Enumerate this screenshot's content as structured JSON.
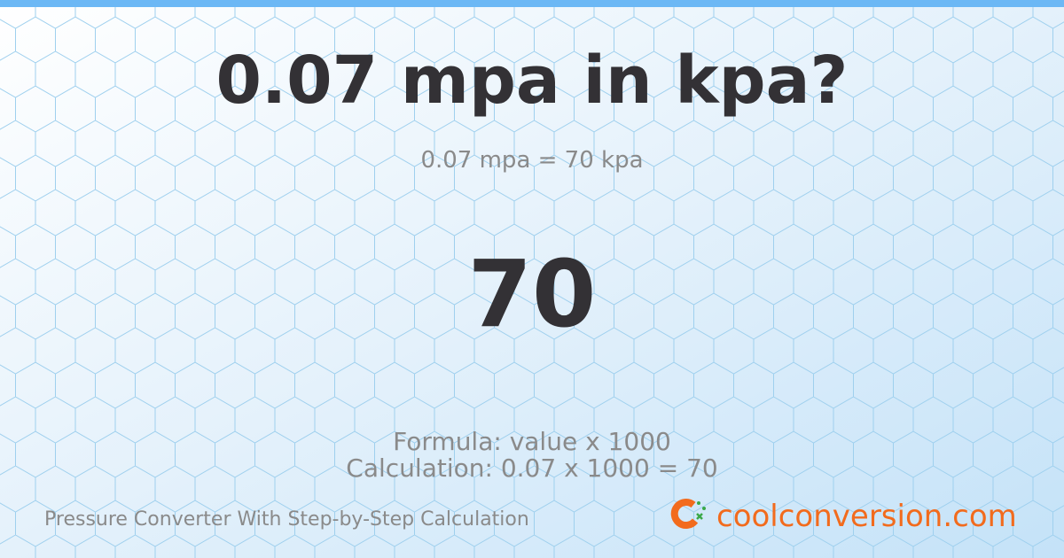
{
  "header": {
    "title": "0.07 mpa in kpa?",
    "subtitle": "0.07 mpa = 70 kpa"
  },
  "result": "70",
  "details": {
    "formula": "Formula: value x 1000",
    "calculation": "Calculation: 0.07 x 1000 = 70"
  },
  "footer": {
    "tagline": "Pressure Converter With Step-by-Step Calculation",
    "brand": "coolconversion.com"
  }
}
